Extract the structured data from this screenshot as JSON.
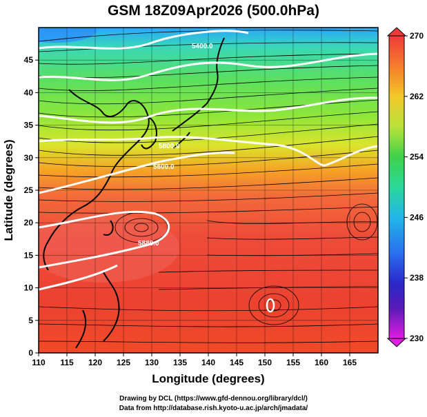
{
  "title": "GSM 18Z09Apr2026 (500.0hPa)",
  "axes": {
    "xlabel": "Longitude (degrees)",
    "ylabel": "Latitude  (degrees)",
    "xticks": [
      "110",
      "115",
      "120",
      "125",
      "130",
      "135",
      "140",
      "145",
      "150",
      "155",
      "160",
      "165"
    ],
    "yticks": [
      "0",
      "5",
      "10",
      "15",
      "20",
      "25",
      "30",
      "35",
      "40",
      "45"
    ],
    "xrange": [
      110,
      170
    ],
    "yrange": [
      0,
      50
    ]
  },
  "colorbar": {
    "min": 230,
    "max": 270,
    "labels": [
      "270",
      "262",
      "254",
      "246",
      "238",
      "230"
    ]
  },
  "contours": {
    "labels": [
      "5400.0",
      "5600.0",
      "5800.0",
      "5880.0"
    ]
  },
  "credits": {
    "line1": "Drawing by DCL (https://www.gfd-dennou.org/library/dcl/)",
    "line2": "Data from http://database.rish.kyoto-u.ac.jp/arch/jmadata/"
  }
}
